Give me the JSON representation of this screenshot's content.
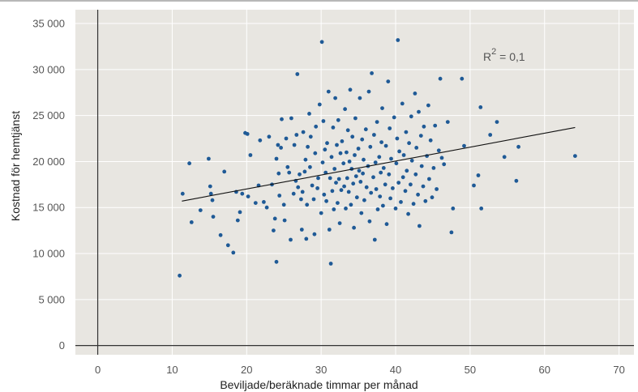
{
  "chart_data": {
    "type": "scatter",
    "title": "",
    "xlabel": "Beviljade/beräknade timmar per månad",
    "ylabel": "Kostnad för hemtjänst",
    "xlim": [
      -3,
      72
    ],
    "ylim": [
      -1000,
      36500
    ],
    "xticks": [
      0,
      10,
      20,
      30,
      40,
      50,
      60,
      70
    ],
    "xtick_labels": [
      "0",
      "10",
      "20",
      "30",
      "40",
      "50",
      "60",
      "70"
    ],
    "yticks": [
      0,
      5000,
      10000,
      15000,
      20000,
      25000,
      30000,
      35000
    ],
    "ytick_labels": [
      "0",
      "5 000",
      "10 000",
      "15 000",
      "20 000",
      "25 000",
      "30 000",
      "35 000"
    ],
    "grid": true,
    "annotation": {
      "r_text": "R",
      "sup_text": "2",
      "rest_text": " = 0,1"
    },
    "trendline": {
      "x": [
        11.3,
        64.1
      ],
      "y": [
        15700,
        23700
      ]
    },
    "colors": {
      "point": "#1f5a96",
      "background": "#e8e6e1",
      "grid": "#ffffff",
      "axis": "#333333",
      "line": "#111111"
    },
    "points": [
      [
        11,
        7600
      ],
      [
        11.4,
        16500
      ],
      [
        12.3,
        19800
      ],
      [
        12.6,
        13400
      ],
      [
        13.8,
        14700
      ],
      [
        14.9,
        20300
      ],
      [
        15.1,
        17300
      ],
      [
        15.2,
        16500
      ],
      [
        15.4,
        15800
      ],
      [
        15.5,
        14000
      ],
      [
        16.5,
        12000
      ],
      [
        17,
        18900
      ],
      [
        17.5,
        10900
      ],
      [
        18.2,
        10100
      ],
      [
        18.6,
        16700
      ],
      [
        18.8,
        13600
      ],
      [
        19.1,
        14500
      ],
      [
        19.4,
        16500
      ],
      [
        19.8,
        23100
      ],
      [
        20.1,
        23000
      ],
      [
        20.2,
        16200
      ],
      [
        20.5,
        20700
      ],
      [
        21.2,
        15500
      ],
      [
        21.6,
        17400
      ],
      [
        21.8,
        22300
      ],
      [
        22.3,
        15600
      ],
      [
        22.7,
        15000
      ],
      [
        23,
        22700
      ],
      [
        23.4,
        17500
      ],
      [
        23.6,
        12500
      ],
      [
        23.8,
        13800
      ],
      [
        24,
        20300
      ],
      [
        24,
        9100
      ],
      [
        24.2,
        21800
      ],
      [
        24.3,
        18700
      ],
      [
        24.4,
        16300
      ],
      [
        24.6,
        21500
      ],
      [
        24.7,
        24600
      ],
      [
        25,
        15300
      ],
      [
        25.1,
        13600
      ],
      [
        25.3,
        22500
      ],
      [
        25.5,
        19400
      ],
      [
        25.7,
        18800
      ],
      [
        25.9,
        11500
      ],
      [
        26,
        24700
      ],
      [
        26.3,
        16500
      ],
      [
        26.4,
        21800
      ],
      [
        26.6,
        17900
      ],
      [
        26.7,
        22900
      ],
      [
        26.8,
        29500
      ],
      [
        26.9,
        17200
      ],
      [
        27.1,
        18600
      ],
      [
        27.3,
        15900
      ],
      [
        27.4,
        12600
      ],
      [
        27.5,
        16700
      ],
      [
        27.6,
        23200
      ],
      [
        27.8,
        18900
      ],
      [
        27.9,
        20200
      ],
      [
        28,
        11600
      ],
      [
        28.1,
        15300
      ],
      [
        28.2,
        21600
      ],
      [
        28.4,
        25200
      ],
      [
        28.5,
        19400
      ],
      [
        28.6,
        22700
      ],
      [
        28.8,
        17400
      ],
      [
        29,
        15900
      ],
      [
        29.1,
        12100
      ],
      [
        29.2,
        20900
      ],
      [
        29.3,
        23800
      ],
      [
        29.5,
        17100
      ],
      [
        29.6,
        18200
      ],
      [
        29.8,
        26200
      ],
      [
        30,
        14400
      ],
      [
        30.1,
        33000
      ],
      [
        30.2,
        19900
      ],
      [
        30.3,
        24400
      ],
      [
        30.4,
        16400
      ],
      [
        30.5,
        21300
      ],
      [
        30.6,
        18800
      ],
      [
        30.7,
        15700
      ],
      [
        30.8,
        22000
      ],
      [
        31,
        27600
      ],
      [
        31.1,
        12600
      ],
      [
        31.2,
        18200
      ],
      [
        31.3,
        8900
      ],
      [
        31.4,
        20500
      ],
      [
        31.5,
        16800
      ],
      [
        31.6,
        23700
      ],
      [
        31.7,
        14800
      ],
      [
        31.8,
        19200
      ],
      [
        31.9,
        26900
      ],
      [
        32,
        17700
      ],
      [
        32.1,
        21800
      ],
      [
        32.2,
        15500
      ],
      [
        32.3,
        24500
      ],
      [
        32.4,
        18100
      ],
      [
        32.5,
        13300
      ],
      [
        32.6,
        20900
      ],
      [
        32.7,
        16900
      ],
      [
        32.8,
        22200
      ],
      [
        33,
        19800
      ],
      [
        33.1,
        17300
      ],
      [
        33.2,
        25700
      ],
      [
        33.3,
        14900
      ],
      [
        33.4,
        21000
      ],
      [
        33.5,
        18200
      ],
      [
        33.6,
        23400
      ],
      [
        33.7,
        16700
      ],
      [
        33.8,
        20000
      ],
      [
        33.9,
        27800
      ],
      [
        34,
        15300
      ],
      [
        34.1,
        19200
      ],
      [
        34.2,
        22700
      ],
      [
        34.3,
        17600
      ],
      [
        34.4,
        12800
      ],
      [
        34.5,
        20700
      ],
      [
        34.6,
        24700
      ],
      [
        34.7,
        18400
      ],
      [
        34.8,
        16100
      ],
      [
        35,
        21400
      ],
      [
        35.1,
        19000
      ],
      [
        35.2,
        26900
      ],
      [
        35.3,
        17800
      ],
      [
        35.4,
        14400
      ],
      [
        35.5,
        22400
      ],
      [
        35.6,
        18700
      ],
      [
        35.7,
        20200
      ],
      [
        35.8,
        15800
      ],
      [
        36,
        23500
      ],
      [
        36.1,
        17200
      ],
      [
        36.3,
        19500
      ],
      [
        36.4,
        27600
      ],
      [
        36.5,
        13500
      ],
      [
        36.6,
        21600
      ],
      [
        36.7,
        16600
      ],
      [
        36.8,
        29600
      ],
      [
        37,
        18300
      ],
      [
        37.1,
        22900
      ],
      [
        37.2,
        11500
      ],
      [
        37.3,
        19900
      ],
      [
        37.4,
        17000
      ],
      [
        37.5,
        24300
      ],
      [
        37.6,
        14800
      ],
      [
        37.8,
        20500
      ],
      [
        37.9,
        16200
      ],
      [
        38,
        18800
      ],
      [
        38.1,
        22100
      ],
      [
        38.2,
        25800
      ],
      [
        38.3,
        15200
      ],
      [
        38.4,
        19300
      ],
      [
        38.6,
        17500
      ],
      [
        38.7,
        21700
      ],
      [
        38.8,
        13200
      ],
      [
        39,
        28700
      ],
      [
        39.1,
        18600
      ],
      [
        39.2,
        23600
      ],
      [
        39.3,
        16000
      ],
      [
        39.4,
        20300
      ],
      [
        39.6,
        17100
      ],
      [
        39.8,
        24800
      ],
      [
        40,
        14900
      ],
      [
        40.1,
        19800
      ],
      [
        40.2,
        22500
      ],
      [
        40.3,
        33200
      ],
      [
        40.4,
        17700
      ],
      [
        40.5,
        21100
      ],
      [
        40.7,
        15600
      ],
      [
        40.9,
        26300
      ],
      [
        41,
        18300
      ],
      [
        41.1,
        20700
      ],
      [
        41.3,
        16800
      ],
      [
        41.4,
        23200
      ],
      [
        41.5,
        19000
      ],
      [
        41.7,
        14300
      ],
      [
        41.8,
        22000
      ],
      [
        42,
        17500
      ],
      [
        42.1,
        24900
      ],
      [
        42.2,
        20100
      ],
      [
        42.4,
        15400
      ],
      [
        42.6,
        27400
      ],
      [
        42.7,
        18600
      ],
      [
        42.8,
        21500
      ],
      [
        43,
        16400
      ],
      [
        43.1,
        25400
      ],
      [
        43.2,
        13000
      ],
      [
        43.4,
        22800
      ],
      [
        43.5,
        19500
      ],
      [
        43.7,
        17300
      ],
      [
        43.8,
        23800
      ],
      [
        44,
        15700
      ],
      [
        44.2,
        20600
      ],
      [
        44.4,
        26100
      ],
      [
        44.5,
        18100
      ],
      [
        44.7,
        22300
      ],
      [
        44.9,
        16100
      ],
      [
        45.1,
        19300
      ],
      [
        45.3,
        23900
      ],
      [
        45.5,
        17000
      ],
      [
        45.8,
        21200
      ],
      [
        46,
        29000
      ],
      [
        46.2,
        20400
      ],
      [
        46.5,
        19700
      ],
      [
        47,
        24300
      ],
      [
        47.5,
        12300
      ],
      [
        47.7,
        14900
      ],
      [
        48.9,
        29000
      ],
      [
        49.2,
        21700
      ],
      [
        50.5,
        17400
      ],
      [
        51.1,
        18500
      ],
      [
        51.4,
        25900
      ],
      [
        51.5,
        14900
      ],
      [
        52.7,
        22900
      ],
      [
        53.6,
        24300
      ],
      [
        54.6,
        20500
      ],
      [
        56.2,
        17900
      ],
      [
        56.5,
        21600
      ],
      [
        64.1,
        20600
      ]
    ]
  }
}
